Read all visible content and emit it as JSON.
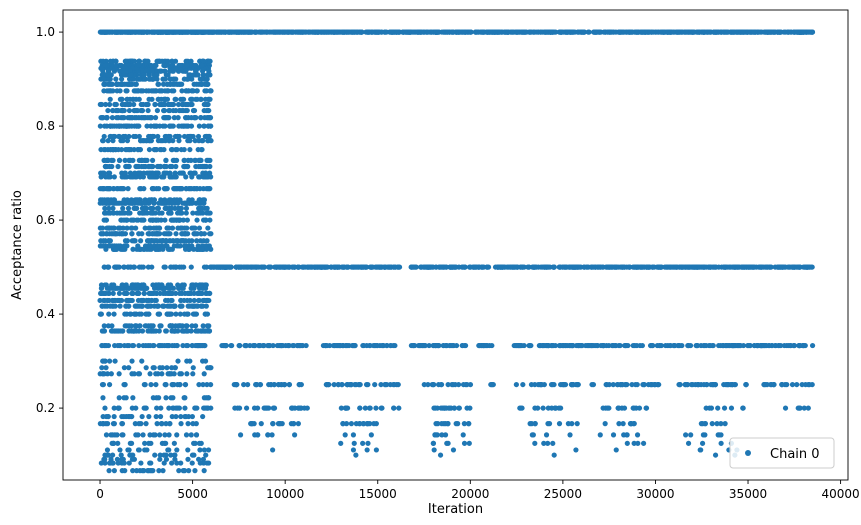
{
  "chart_data": {
    "type": "scatter",
    "xlabel": "Iteration",
    "ylabel": "Acceptance ratio",
    "xlim": [
      -2000,
      40400
    ],
    "ylim": [
      0.047,
      1.047
    ],
    "x_ticks": [
      0,
      5000,
      10000,
      15000,
      20000,
      25000,
      30000,
      35000,
      40000
    ],
    "y_ticks": [
      0.2,
      0.4,
      0.6,
      0.8,
      1.0
    ],
    "x_tick_labels": [
      "0",
      "5000",
      "10000",
      "15000",
      "20000",
      "25000",
      "30000",
      "35000",
      "40000"
    ],
    "y_tick_labels": [
      "0.2",
      "0.4",
      "0.6",
      "0.8",
      "1.0"
    ],
    "grid": false,
    "legend_position": "bottom-right",
    "color": "#1f77b4",
    "series": [
      {
        "name": "Chain 0",
        "x_range": [
          0,
          38500
        ],
        "phases": [
          {
            "x_range": [
              0,
              6000
            ],
            "levels": [
              0.067,
              0.083,
              0.091,
              0.1,
              0.111,
              0.125,
              0.143,
              0.167,
              0.182,
              0.2,
              0.222,
              0.25,
              0.273,
              0.286,
              0.3,
              0.333,
              0.364,
              0.375,
              0.4,
              0.417,
              0.429,
              0.444,
              0.455,
              0.462,
              0.5,
              0.538,
              0.545,
              0.556,
              0.571,
              0.583,
              0.6,
              0.615,
              0.625,
              0.636,
              0.643,
              0.667,
              0.692,
              0.7,
              0.714,
              0.727,
              0.75,
              0.769,
              0.778,
              0.8,
              0.818,
              0.833,
              0.846,
              0.857,
              0.875,
              0.889,
              0.9,
              0.909,
              0.917,
              0.923,
              0.929,
              0.938,
              1.0
            ]
          },
          {
            "x_range": [
              6000,
              38500
            ],
            "levels": [
              1.0,
              0.5,
              0.333,
              0.25,
              0.2,
              0.167,
              0.143,
              0.125,
              0.111,
              0.1
            ]
          }
        ]
      }
    ]
  }
}
